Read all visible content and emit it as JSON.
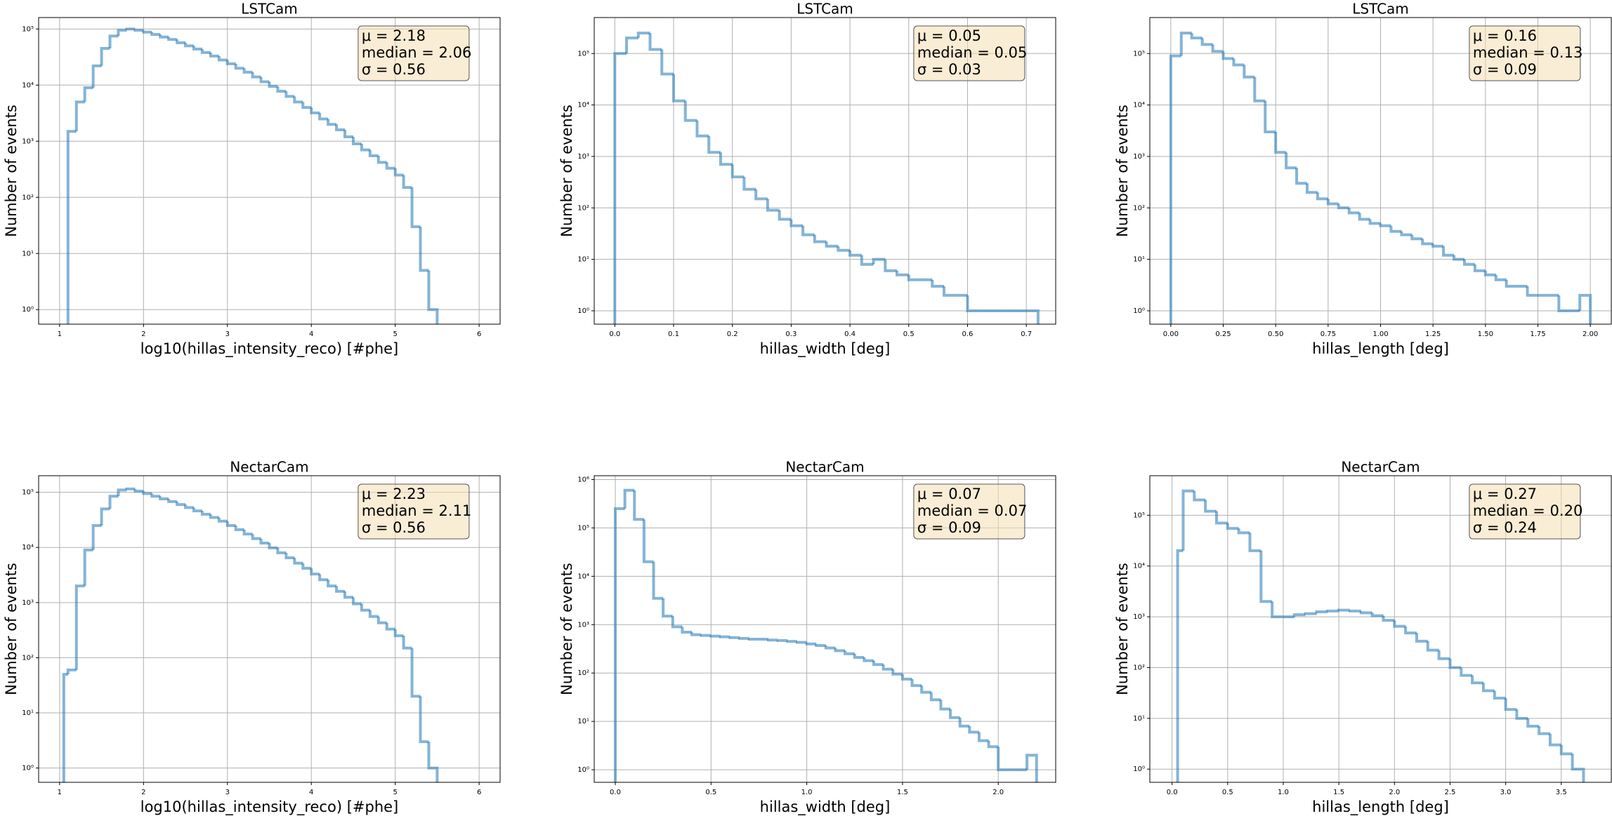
{
  "chart_data": [
    {
      "type": "histogram",
      "title": "LSTCam",
      "xlabel": "log10(hillas_intensity_reco) [#phe]",
      "ylabel": "Number of events",
      "log_y": true,
      "grid": true,
      "color": "#1f77b4",
      "annotation": [
        "μ = 2.18",
        "median = 2.06",
        "σ = 0.56"
      ],
      "xlim": [
        0.75,
        6.25
      ],
      "xticks": [
        1,
        2,
        3,
        4,
        5,
        6
      ],
      "ylim": [
        0.55,
        160000
      ],
      "yticks": [
        {
          "value": 1,
          "label": "10⁰"
        },
        {
          "value": 10,
          "label": "10¹"
        },
        {
          "value": 100,
          "label": "10²"
        },
        {
          "value": 1000,
          "label": "10³"
        },
        {
          "value": 10000,
          "label": "10⁴"
        },
        {
          "value": 100000,
          "label": "10⁵"
        }
      ],
      "bins": [
        1.1,
        1.2,
        1.3,
        1.4,
        1.5,
        1.6,
        1.7,
        1.8,
        1.9,
        2.0,
        2.1,
        2.2,
        2.3,
        2.4,
        2.5,
        2.6,
        2.7,
        2.8,
        2.9,
        3.0,
        3.1,
        3.2,
        3.3,
        3.4,
        3.5,
        3.6,
        3.7,
        3.8,
        3.9,
        4.0,
        4.1,
        4.2,
        4.3,
        4.4,
        4.5,
        4.6,
        4.7,
        4.8,
        4.9,
        5.0,
        5.1,
        5.2,
        5.3,
        5.4,
        5.5
      ],
      "counts": [
        1500,
        5000,
        9000,
        22000,
        45000,
        75000,
        95000,
        100000,
        95000,
        88000,
        80000,
        72000,
        65000,
        57000,
        50000,
        44000,
        38000,
        33000,
        28000,
        24000,
        20000,
        17000,
        14000,
        11500,
        9500,
        7800,
        6300,
        5000,
        4000,
        3200,
        2500,
        2000,
        1600,
        1200,
        900,
        700,
        550,
        420,
        330,
        250,
        150,
        30,
        5,
        1
      ]
    },
    {
      "type": "histogram",
      "title": "LSTCam",
      "xlabel": "hillas_width [deg]",
      "ylabel": "Number of events",
      "log_y": true,
      "grid": true,
      "color": "#1f77b4",
      "annotation": [
        "μ = 0.05",
        "median = 0.05",
        "σ = 0.03"
      ],
      "xlim": [
        -0.035,
        0.75
      ],
      "xticks": [
        {
          "value": 0,
          "label": "0.0"
        },
        {
          "value": 0.1,
          "label": "0.1"
        },
        {
          "value": 0.2,
          "label": "0.2"
        },
        {
          "value": 0.3,
          "label": "0.3"
        },
        {
          "value": 0.4,
          "label": "0.4"
        },
        {
          "value": 0.5,
          "label": "0.5"
        },
        {
          "value": 0.6,
          "label": "0.6"
        },
        {
          "value": 0.7,
          "label": "0.7"
        }
      ],
      "ylim": [
        0.55,
        500000
      ],
      "yticks": [
        {
          "value": 1,
          "label": "10⁰"
        },
        {
          "value": 10,
          "label": "10¹"
        },
        {
          "value": 100,
          "label": "10²"
        },
        {
          "value": 1000,
          "label": "10³"
        },
        {
          "value": 10000,
          "label": "10⁴"
        },
        {
          "value": 100000,
          "label": "10⁵"
        }
      ],
      "bins": [
        0,
        0.02,
        0.04,
        0.06,
        0.08,
        0.1,
        0.12,
        0.14,
        0.16,
        0.18,
        0.2,
        0.22,
        0.24,
        0.26,
        0.28,
        0.3,
        0.32,
        0.34,
        0.36,
        0.38,
        0.4,
        0.42,
        0.44,
        0.46,
        0.48,
        0.5,
        0.52,
        0.54,
        0.56,
        0.58,
        0.6,
        0.62,
        0.64,
        0.66,
        0.68,
        0.7,
        0.72
      ],
      "counts": [
        100000,
        200000,
        250000,
        120000,
        40000,
        12000,
        5000,
        2500,
        1200,
        700,
        400,
        230,
        150,
        90,
        60,
        45,
        30,
        22,
        18,
        15,
        12,
        8,
        10,
        6,
        5,
        4,
        4,
        3,
        2,
        2,
        1,
        1,
        1,
        1,
        1,
        1
      ]
    },
    {
      "type": "histogram",
      "title": "LSTCam",
      "xlabel": "hillas_length [deg]",
      "ylabel": "Number of events",
      "log_y": true,
      "grid": true,
      "color": "#1f77b4",
      "annotation": [
        "μ = 0.16",
        "median = 0.13",
        "σ = 0.09"
      ],
      "xlim": [
        -0.1,
        2.1
      ],
      "xticks": [
        {
          "value": 0,
          "label": "0.00"
        },
        {
          "value": 0.25,
          "label": "0.25"
        },
        {
          "value": 0.5,
          "label": "0.50"
        },
        {
          "value": 0.75,
          "label": "0.75"
        },
        {
          "value": 1,
          "label": "1.00"
        },
        {
          "value": 1.25,
          "label": "1.25"
        },
        {
          "value": 1.5,
          "label": "1.50"
        },
        {
          "value": 1.75,
          "label": "1.75"
        },
        {
          "value": 2,
          "label": "2.00"
        }
      ],
      "ylim": [
        0.55,
        500000
      ],
      "yticks": [
        {
          "value": 1,
          "label": "10⁰"
        },
        {
          "value": 10,
          "label": "10¹"
        },
        {
          "value": 100,
          "label": "10²"
        },
        {
          "value": 1000,
          "label": "10³"
        },
        {
          "value": 10000,
          "label": "10⁴"
        },
        {
          "value": 100000,
          "label": "10⁵"
        }
      ],
      "bins": [
        0,
        0.05,
        0.1,
        0.15,
        0.2,
        0.25,
        0.3,
        0.35,
        0.4,
        0.45,
        0.5,
        0.55,
        0.6,
        0.65,
        0.7,
        0.75,
        0.8,
        0.85,
        0.9,
        0.95,
        1,
        1.05,
        1.1,
        1.15,
        1.2,
        1.25,
        1.3,
        1.35,
        1.4,
        1.45,
        1.5,
        1.55,
        1.6,
        1.65,
        1.7,
        1.75,
        1.8,
        1.85,
        1.9,
        1.95,
        2
      ],
      "counts": [
        90000,
        250000,
        200000,
        150000,
        110000,
        80000,
        60000,
        35000,
        12000,
        3000,
        1200,
        600,
        300,
        200,
        150,
        120,
        100,
        80,
        60,
        50,
        45,
        35,
        30,
        25,
        20,
        18,
        12,
        10,
        8,
        6,
        5,
        4,
        3,
        3,
        2,
        2,
        2,
        1,
        1,
        2
      ]
    },
    {
      "type": "histogram",
      "title": "NectarCam",
      "xlabel": "log10(hillas_intensity_reco) [#phe]",
      "ylabel": "Number of events",
      "log_y": true,
      "grid": true,
      "color": "#1f77b4",
      "annotation": [
        "μ = 2.23",
        "median = 2.11",
        "σ = 0.56"
      ],
      "xlim": [
        0.75,
        6.25
      ],
      "xticks": [
        1,
        2,
        3,
        4,
        5,
        6
      ],
      "ylim": [
        0.55,
        200000
      ],
      "yticks": [
        {
          "value": 1,
          "label": "10⁰"
        },
        {
          "value": 10,
          "label": "10¹"
        },
        {
          "value": 100,
          "label": "10²"
        },
        {
          "value": 1000,
          "label": "10³"
        },
        {
          "value": 10000,
          "label": "10⁴"
        },
        {
          "value": 100000,
          "label": "10⁵"
        }
      ],
      "bins": [
        1.05,
        1.1,
        1.2,
        1.3,
        1.4,
        1.5,
        1.6,
        1.7,
        1.8,
        1.9,
        2.0,
        2.1,
        2.2,
        2.3,
        2.4,
        2.5,
        2.6,
        2.7,
        2.8,
        2.9,
        3.0,
        3.1,
        3.2,
        3.3,
        3.4,
        3.5,
        3.6,
        3.7,
        3.8,
        3.9,
        4.0,
        4.1,
        4.2,
        4.3,
        4.4,
        4.5,
        4.6,
        4.7,
        4.8,
        4.9,
        5.0,
        5.1,
        5.2,
        5.3,
        5.4,
        5.5
      ],
      "counts": [
        50,
        60,
        2000,
        9000,
        25000,
        50000,
        85000,
        110000,
        115000,
        105000,
        95000,
        85000,
        76000,
        68000,
        60000,
        53000,
        46000,
        40000,
        35000,
        30000,
        25000,
        21000,
        17500,
        14500,
        12000,
        9800,
        8000,
        6500,
        5200,
        4200,
        3300,
        2600,
        2000,
        1600,
        1250,
        950,
        730,
        560,
        430,
        330,
        250,
        150,
        20,
        3,
        1
      ]
    },
    {
      "type": "histogram",
      "title": "NectarCam",
      "xlabel": "hillas_width [deg]",
      "ylabel": "Number of events",
      "log_y": true,
      "grid": true,
      "color": "#1f77b4",
      "annotation": [
        "μ = 0.07",
        "median = 0.07",
        "σ = 0.09"
      ],
      "xlim": [
        -0.11,
        2.3
      ],
      "xticks": [
        {
          "value": 0,
          "label": "0.0"
        },
        {
          "value": 0.5,
          "label": "0.5"
        },
        {
          "value": 1,
          "label": "1.0"
        },
        {
          "value": 1.5,
          "label": "1.5"
        },
        {
          "value": 2,
          "label": "2.0"
        }
      ],
      "ylim": [
        0.55,
        1200000
      ],
      "yticks": [
        {
          "value": 1,
          "label": "10⁰"
        },
        {
          "value": 10,
          "label": "10¹"
        },
        {
          "value": 100,
          "label": "10²"
        },
        {
          "value": 1000,
          "label": "10³"
        },
        {
          "value": 10000,
          "label": "10⁴"
        },
        {
          "value": 100000,
          "label": "10⁵"
        },
        {
          "value": 1000000,
          "label": "10⁶"
        }
      ],
      "bins": [
        0,
        0.05,
        0.1,
        0.15,
        0.2,
        0.25,
        0.3,
        0.35,
        0.4,
        0.45,
        0.5,
        0.55,
        0.6,
        0.65,
        0.7,
        0.75,
        0.8,
        0.85,
        0.9,
        0.95,
        1,
        1.05,
        1.1,
        1.15,
        1.2,
        1.25,
        1.3,
        1.35,
        1.4,
        1.45,
        1.5,
        1.55,
        1.6,
        1.65,
        1.7,
        1.75,
        1.8,
        1.85,
        1.9,
        1.95,
        2,
        2.05,
        2.1,
        2.15,
        2.2
      ],
      "counts": [
        250000,
        600000,
        150000,
        20000,
        3500,
        1500,
        900,
        700,
        620,
        600,
        580,
        560,
        540,
        520,
        500,
        500,
        480,
        470,
        450,
        430,
        400,
        370,
        330,
        290,
        250,
        210,
        180,
        150,
        120,
        95,
        75,
        55,
        40,
        28,
        18,
        12,
        8,
        6,
        4,
        3,
        1,
        1,
        1,
        2
      ]
    },
    {
      "type": "histogram",
      "title": "NectarCam",
      "xlabel": "hillas_length [deg]",
      "ylabel": "Number of events",
      "log_y": true,
      "grid": true,
      "color": "#1f77b4",
      "annotation": [
        "μ = 0.27",
        "median = 0.20",
        "σ = 0.24"
      ],
      "xlim": [
        -0.2,
        3.95
      ],
      "xticks": [
        {
          "value": 0,
          "label": "0.0"
        },
        {
          "value": 0.5,
          "label": "0.5"
        },
        {
          "value": 1,
          "label": "1.0"
        },
        {
          "value": 1.5,
          "label": "1.5"
        },
        {
          "value": 2,
          "label": "2.0"
        },
        {
          "value": 2.5,
          "label": "2.5"
        },
        {
          "value": 3,
          "label": "3.0"
        },
        {
          "value": 3.5,
          "label": "3.5"
        }
      ],
      "ylim": [
        0.55,
        600000
      ],
      "yticks": [
        {
          "value": 1,
          "label": "10⁰"
        },
        {
          "value": 10,
          "label": "10¹"
        },
        {
          "value": 100,
          "label": "10²"
        },
        {
          "value": 1000,
          "label": "10³"
        },
        {
          "value": 10000,
          "label": "10⁴"
        },
        {
          "value": 100000,
          "label": "10⁵"
        }
      ],
      "bins": [
        0.05,
        0.1,
        0.2,
        0.3,
        0.4,
        0.5,
        0.6,
        0.7,
        0.8,
        0.9,
        1,
        1.1,
        1.2,
        1.3,
        1.4,
        1.5,
        1.6,
        1.7,
        1.8,
        1.9,
        2,
        2.1,
        2.2,
        2.3,
        2.4,
        2.5,
        2.6,
        2.7,
        2.8,
        2.9,
        3,
        3.1,
        3.2,
        3.3,
        3.4,
        3.5,
        3.6,
        3.7
      ],
      "counts": [
        20000,
        300000,
        200000,
        120000,
        70000,
        55000,
        45000,
        20000,
        2000,
        1000,
        1000,
        1100,
        1150,
        1250,
        1300,
        1350,
        1300,
        1200,
        1050,
        850,
        650,
        480,
        330,
        220,
        150,
        100,
        70,
        50,
        35,
        25,
        15,
        10,
        7,
        5,
        3,
        2,
        1
      ]
    }
  ]
}
